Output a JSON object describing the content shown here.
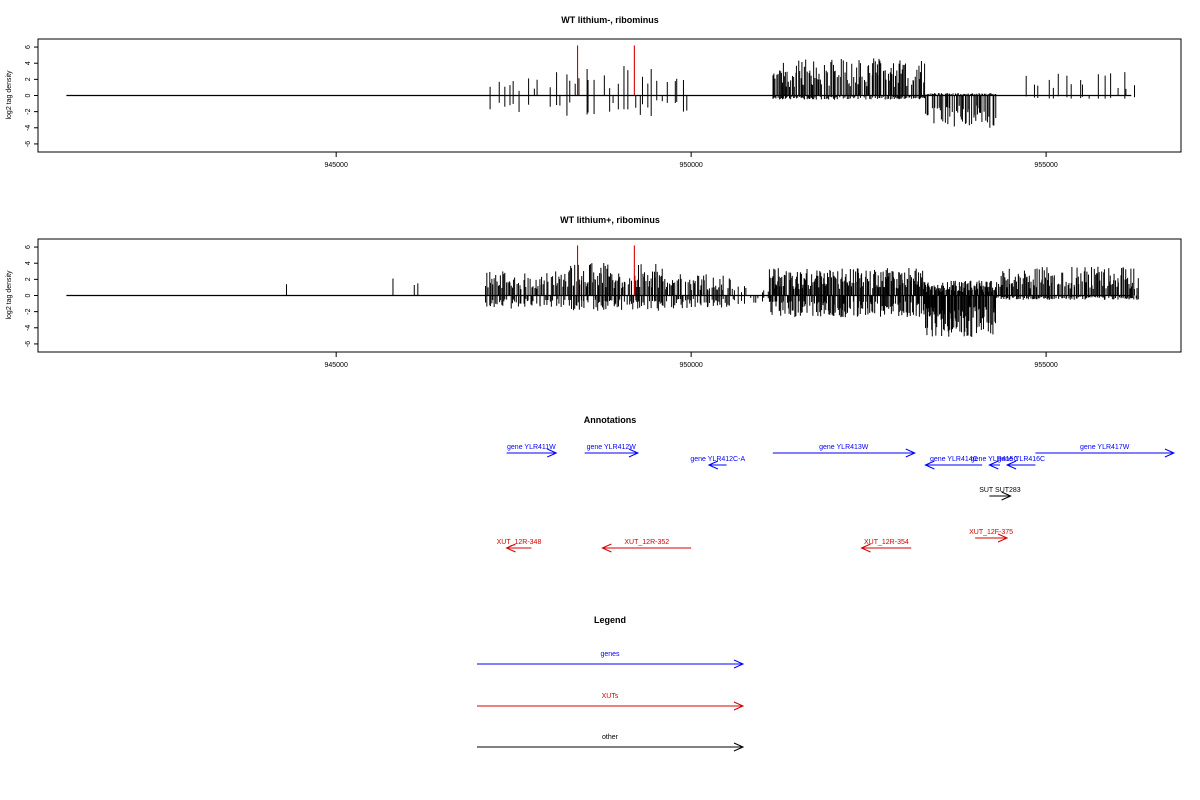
{
  "chart_data": [
    {
      "type": "bar",
      "title": "WT lithium-, ribominus",
      "xlabel": "",
      "ylabel": "log2 tag density",
      "xlim": [
        940800,
        956900
      ],
      "ylim": [
        -7,
        7
      ],
      "x_ticks": [
        "945000",
        "950000",
        "955000"
      ],
      "y_ticks": [
        "6",
        "4",
        "2",
        "0",
        "-2",
        "-4",
        "-6"
      ],
      "baseline_range": [
        941200,
        956200
      ],
      "highlight_color": "#d40000",
      "bar_color": "#000000",
      "highlights": [
        948400,
        949200
      ],
      "segments": [
        {
          "from": 947150,
          "to": 947900,
          "n": 9,
          "pos": 1.4,
          "neg": 1.6,
          "seed": 11
        },
        {
          "from": 948000,
          "to": 949500,
          "n": 22,
          "pos": 2.6,
          "neg": 1.9,
          "seed": 12
        },
        {
          "from": 949500,
          "to": 950000,
          "n": 7,
          "pos": 1.5,
          "neg": 1.5,
          "seed": 13
        },
        {
          "from": 951150,
          "to": 953300,
          "n": 150,
          "pos": 3.0,
          "neg": 0.4,
          "seed": 14
        },
        {
          "from": 953300,
          "to": 954300,
          "n": 70,
          "pos": 0.2,
          "neg": 3.1,
          "seed": 15
        },
        {
          "from": 954700,
          "to": 956300,
          "n": 18,
          "pos": 1.9,
          "neg": 0.3,
          "seed": 16
        }
      ]
    },
    {
      "type": "bar",
      "title": "WT lithium+, ribominus",
      "xlabel": "",
      "ylabel": "log2 tag density",
      "xlim": [
        940800,
        956900
      ],
      "ylim": [
        -7,
        7
      ],
      "x_ticks": [
        "945000",
        "950000",
        "955000"
      ],
      "y_ticks": [
        "6",
        "4",
        "2",
        "0",
        "-2",
        "-4",
        "-6"
      ],
      "baseline_range": [
        941200,
        956200
      ],
      "highlight_color": "#d40000",
      "bar_color": "#000000",
      "highlights": [
        948400,
        949200
      ],
      "isolated": [
        [
          944300,
          1.4
        ],
        [
          945800,
          2.1
        ],
        [
          946100,
          1.3
        ],
        [
          946150,
          1.5
        ]
      ],
      "segments": [
        {
          "from": 947100,
          "to": 948300,
          "n": 70,
          "pos": 2.0,
          "neg": 1.2,
          "seed": 21
        },
        {
          "from": 948300,
          "to": 949600,
          "n": 90,
          "pos": 2.6,
          "neg": 1.4,
          "seed": 22
        },
        {
          "from": 949600,
          "to": 950600,
          "n": 60,
          "pos": 1.7,
          "neg": 1.2,
          "seed": 23
        },
        {
          "from": 950600,
          "to": 951100,
          "n": 12,
          "pos": 1.0,
          "neg": 0.8,
          "seed": 24
        },
        {
          "from": 951100,
          "to": 953300,
          "n": 200,
          "pos": 2.2,
          "neg": 2.0,
          "seed": 25
        },
        {
          "from": 953300,
          "to": 954300,
          "n": 120,
          "pos": 1.2,
          "neg": 3.8,
          "seed": 26
        },
        {
          "from": 954300,
          "to": 956300,
          "n": 140,
          "pos": 2.3,
          "neg": 0.4,
          "seed": 27
        }
      ]
    }
  ],
  "annotations": {
    "title": "Annotations",
    "xlim": [
      940800,
      956900
    ],
    "genes_color": "#0000ff",
    "xuts_color": "#d40000",
    "other_color": "#000000",
    "features": [
      {
        "label": "gene YLR411W",
        "start": 947400,
        "end": 948100,
        "strand": "+",
        "track": "gene",
        "row": 0
      },
      {
        "label": "gene YLR412W",
        "start": 948500,
        "end": 949250,
        "strand": "+",
        "track": "gene",
        "row": 0
      },
      {
        "label": "gene YLR412C-A",
        "start": 950250,
        "end": 950500,
        "strand": "-",
        "track": "gene",
        "row": 1
      },
      {
        "label": "gene YLR413W",
        "start": 951150,
        "end": 953150,
        "strand": "+",
        "track": "gene",
        "row": 0
      },
      {
        "label": "gene YLR414C",
        "start": 953300,
        "end": 954100,
        "strand": "-",
        "track": "gene",
        "row": 1
      },
      {
        "label": "gene YLR415C",
        "start": 954200,
        "end": 954350,
        "strand": "-",
        "track": "gene",
        "row": 1
      },
      {
        "label": "gene YLR416C",
        "start": 954450,
        "end": 954850,
        "strand": "-",
        "track": "gene",
        "row": 1
      },
      {
        "label": "gene YLR417W",
        "start": 954850,
        "end": 956800,
        "strand": "+",
        "track": "gene",
        "row": 0
      },
      {
        "label": "SUT SUT283",
        "start": 954200,
        "end": 954500,
        "strand": "+",
        "track": "other",
        "row": 2
      },
      {
        "label": "XUT_12F-375",
        "start": 954000,
        "end": 954450,
        "strand": "+",
        "track": "xut",
        "row": 3
      },
      {
        "label": "XUT_12R-348",
        "start": 947400,
        "end": 947750,
        "strand": "-",
        "track": "xut",
        "row": 4
      },
      {
        "label": "XUT_12R-352",
        "start": 948750,
        "end": 950000,
        "strand": "-",
        "track": "xut",
        "row": 4
      },
      {
        "label": "XUT_12R-354",
        "start": 952400,
        "end": 953100,
        "strand": "-",
        "track": "xut",
        "row": 4
      }
    ]
  },
  "legend": {
    "title": "Legend",
    "entries": [
      {
        "label": "genes",
        "color": "#0000ff"
      },
      {
        "label": "XUTs",
        "color": "#d40000"
      },
      {
        "label": "other",
        "color": "#000000"
      }
    ]
  }
}
